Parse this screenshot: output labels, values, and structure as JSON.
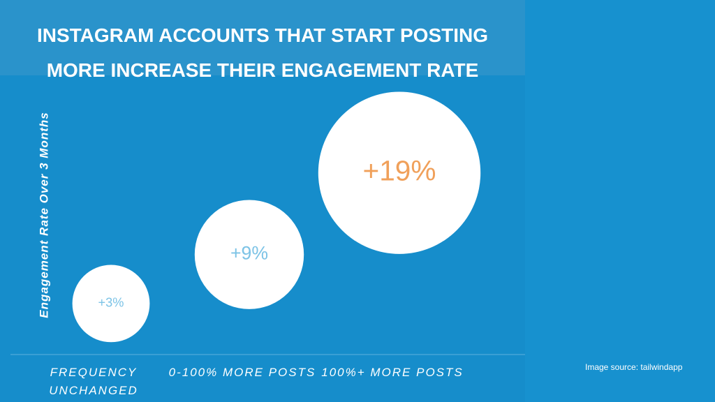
{
  "chart_data": {
    "type": "bubble",
    "title": "INSTAGRAM ACCOUNTS THAT START POSTING MORE INCREASE THEIR ENGAGEMENT RATE",
    "y_label": "Engagement Rate Over 3 Months",
    "categories": [
      "FREQUENCY UNCHANGED",
      "0-100% MORE POSTS",
      "100%+ MORE POSTS"
    ],
    "values": [
      3,
      9,
      19
    ],
    "value_labels": [
      "+3%",
      "+9%",
      "+19%"
    ],
    "label_colors": [
      "#7cc3e6",
      "#7cc3e6",
      "#f0a05a"
    ],
    "color": "#ffffff",
    "source": "Image source: tailwindapp"
  }
}
